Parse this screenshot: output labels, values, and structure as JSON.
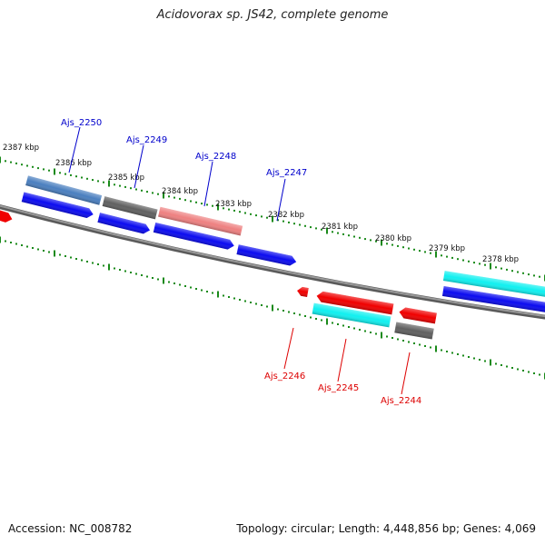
{
  "title": "Acidovorax sp. JS42, complete genome",
  "footer": {
    "accession_label": "Accession: NC_008782",
    "summary": "Topology: circular; Length: 4,448,856 bp; Genes: 4,069"
  },
  "colors": {
    "backbone": "#808080",
    "tick": "#1a8a1a",
    "blue": "#0b0bf0",
    "steel": "#4a7fbf",
    "grey": "#606060",
    "pink": "#ee8080",
    "red": "#f00000",
    "cyan": "#10f0f0",
    "label_forward": "#0000cc",
    "label_reverse": "#dd0000"
  },
  "scale_labels": [
    "2387 kbp",
    "2386 kbp",
    "2385 kbp",
    "2384 kbp",
    "2383 kbp",
    "2382 kbp",
    "2381 kbp",
    "2380 kbp",
    "2379 kbp",
    "2378 kbp"
  ],
  "genes": [
    {
      "name": "Ajs_2250",
      "color": "steel",
      "strand": "forward",
      "labeled": true
    },
    {
      "name": "Ajs_2249",
      "color": "grey",
      "strand": "forward",
      "labeled": true
    },
    {
      "name": "Ajs_2248",
      "color": "pink",
      "strand": "forward",
      "labeled": true
    },
    {
      "name": "Ajs_2247",
      "color": "blue",
      "strand": "forward",
      "labeled": true
    },
    {
      "name": "Ajs_2246",
      "color": "red",
      "strand": "reverse",
      "labeled": true
    },
    {
      "name": "Ajs_2245",
      "color": "cyan",
      "strand": "reverse",
      "labeled": true
    },
    {
      "name": "Ajs_2244",
      "color": "grey",
      "strand": "reverse",
      "labeled": true
    }
  ]
}
